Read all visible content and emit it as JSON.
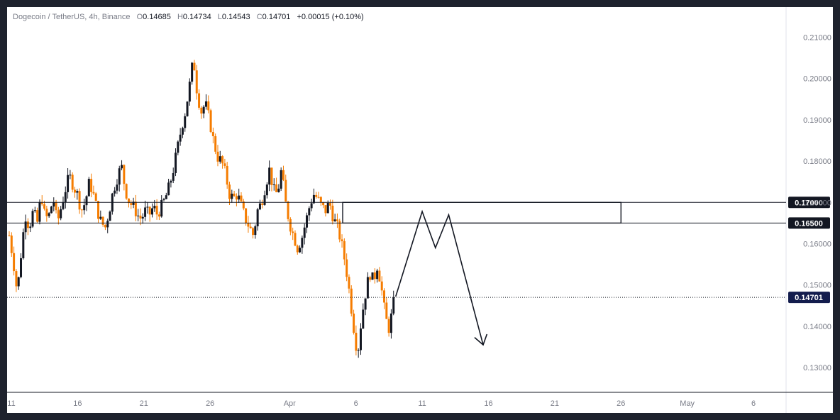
{
  "legend": {
    "symbol": "Dogecoin / TetherUS, 4h, Binance",
    "o_key": "O",
    "o": "0.14685",
    "h_key": "H",
    "h": "0.14734",
    "l_key": "L",
    "l": "0.14543",
    "c_key": "C",
    "c": "0.14701",
    "change": "+0.00015 (+0.10%)"
  },
  "colors": {
    "up": "#131722",
    "down": "#f57c00",
    "box": "#131722",
    "current": "#131722"
  },
  "chart_data": {
    "type": "candlestick",
    "y_ticks": [
      "0.21000",
      "0.20000",
      "0.19000",
      "0.18000",
      "0.17000",
      "0.16000",
      "0.15000",
      "0.14000",
      "0.13000"
    ],
    "x_ticks": [
      "11",
      "16",
      "21",
      "26",
      "Apr",
      "6",
      "11",
      "16",
      "21",
      "26",
      "May",
      "6"
    ],
    "ylim": [
      0.124,
      0.2173
    ],
    "levels": [
      {
        "value": 0.17,
        "label": "0.17000"
      },
      {
        "value": 0.165,
        "label": "0.16500"
      }
    ],
    "current_price": {
      "value": 0.14701,
      "label": "0.14701"
    },
    "zone": {
      "from": "Apr 5",
      "to": "Apr 26",
      "low": 0.165,
      "high": 0.17
    },
    "projection_path": [
      [
        "Apr 9",
        0.1472
      ],
      [
        "Apr 11",
        0.1678
      ],
      [
        "Apr 12",
        0.159
      ],
      [
        "Apr 13",
        0.167
      ],
      [
        "Apr 15.6",
        0.1355
      ]
    ],
    "price_path": [
      0.162,
      0.156,
      0.148,
      0.158,
      0.167,
      0.164,
      0.168,
      0.165,
      0.172,
      0.166,
      0.167,
      0.171,
      0.165,
      0.169,
      0.173,
      0.1765,
      0.174,
      0.172,
      0.168,
      0.17,
      0.175,
      0.172,
      0.168,
      0.165,
      0.164,
      0.168,
      0.173,
      0.176,
      0.179,
      0.173,
      0.17,
      0.169,
      0.167,
      0.166,
      0.168,
      0.167,
      0.169,
      0.167,
      0.169,
      0.171,
      0.174,
      0.178,
      0.183,
      0.188,
      0.192,
      0.198,
      0.205,
      0.196,
      0.192,
      0.194,
      0.19,
      0.185,
      0.181,
      0.18,
      0.177,
      0.172,
      0.171,
      0.172,
      0.169,
      0.166,
      0.164,
      0.162,
      0.168,
      0.17,
      0.174,
      0.178,
      0.173,
      0.172,
      0.178,
      0.17,
      0.165,
      0.162,
      0.159,
      0.161,
      0.165,
      0.169,
      0.172,
      0.171,
      0.169,
      0.168,
      0.17,
      0.166,
      0.164,
      0.16,
      0.155,
      0.148,
      0.14,
      0.133,
      0.142,
      0.148,
      0.153,
      0.151,
      0.155,
      0.149,
      0.142,
      0.139,
      0.147
    ]
  }
}
